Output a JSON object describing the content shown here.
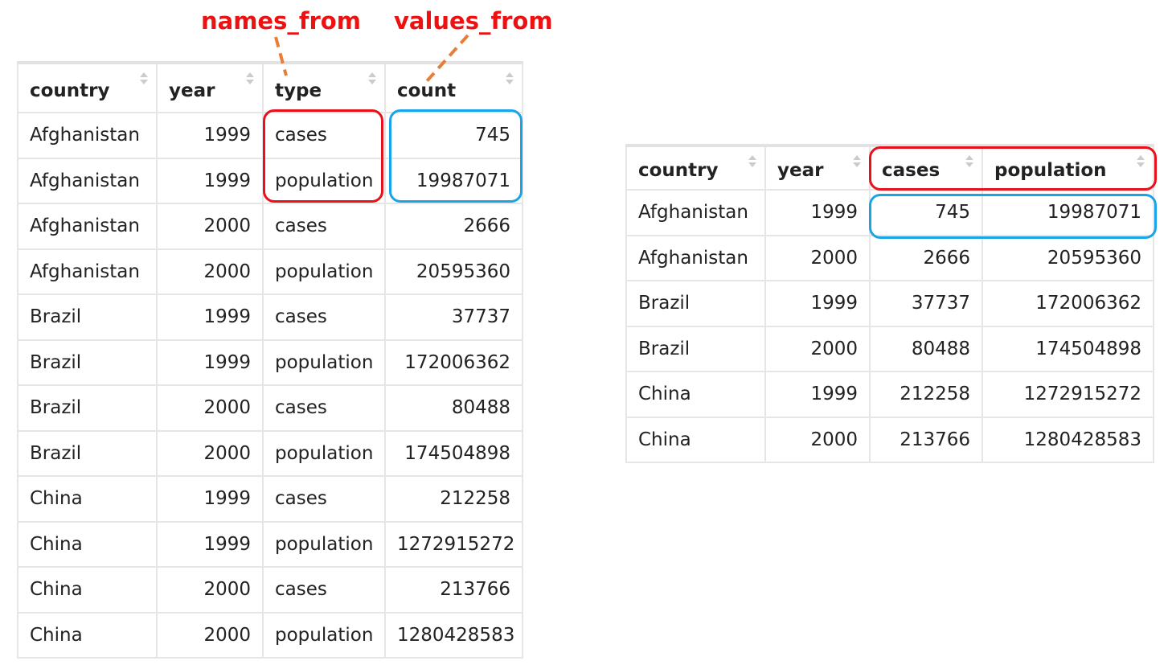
{
  "annotations": {
    "names_from": "names_from",
    "values_from": "values_from"
  },
  "colors": {
    "names_from_highlight": "#e8101a",
    "values_from_highlight": "#1aa4e8",
    "arrow": "#e87d3a",
    "annotation_text": "#ee1111"
  },
  "long_table": {
    "columns": [
      "country",
      "year",
      "type",
      "count"
    ],
    "rows": [
      [
        "Afghanistan",
        "1999",
        "cases",
        "745"
      ],
      [
        "Afghanistan",
        "1999",
        "population",
        "19987071"
      ],
      [
        "Afghanistan",
        "2000",
        "cases",
        "2666"
      ],
      [
        "Afghanistan",
        "2000",
        "population",
        "20595360"
      ],
      [
        "Brazil",
        "1999",
        "cases",
        "37737"
      ],
      [
        "Brazil",
        "1999",
        "population",
        "172006362"
      ],
      [
        "Brazil",
        "2000",
        "cases",
        "80488"
      ],
      [
        "Brazil",
        "2000",
        "population",
        "174504898"
      ],
      [
        "China",
        "1999",
        "cases",
        "212258"
      ],
      [
        "China",
        "1999",
        "population",
        "1272915272"
      ],
      [
        "China",
        "2000",
        "cases",
        "213766"
      ],
      [
        "China",
        "2000",
        "population",
        "1280428583"
      ]
    ]
  },
  "wide_table": {
    "columns": [
      "country",
      "year",
      "cases",
      "population"
    ],
    "rows": [
      [
        "Afghanistan",
        "1999",
        "745",
        "19987071"
      ],
      [
        "Afghanistan",
        "2000",
        "2666",
        "20595360"
      ],
      [
        "Brazil",
        "1999",
        "37737",
        "172006362"
      ],
      [
        "Brazil",
        "2000",
        "80488",
        "174504898"
      ],
      [
        "China",
        "1999",
        "212258",
        "1272915272"
      ],
      [
        "China",
        "2000",
        "213766",
        "1280428583"
      ]
    ]
  }
}
